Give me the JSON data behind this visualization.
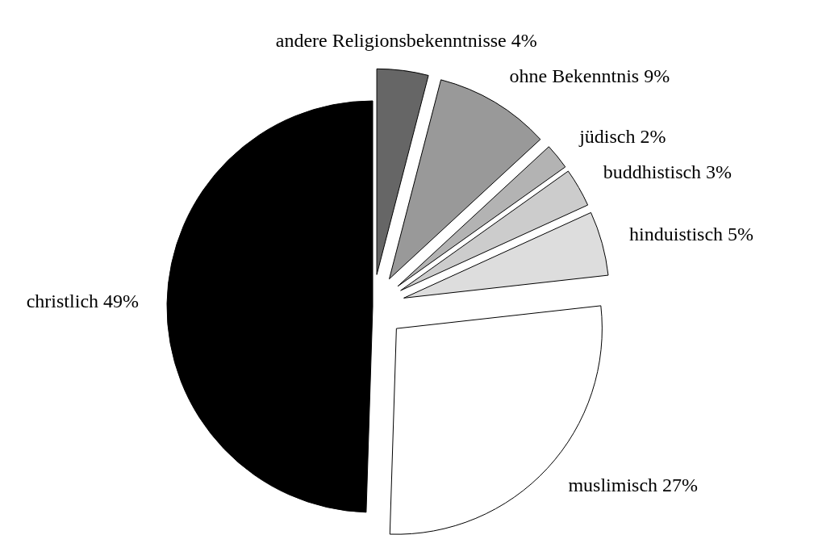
{
  "chart_data": {
    "type": "pie",
    "categories": [
      "andere Religionsbekenntnisse",
      "ohne Bekenntnis",
      "jüdisch",
      "buddhistisch",
      "hinduistisch",
      "muslimisch",
      "christlich"
    ],
    "values": [
      4,
      9,
      2,
      3,
      5,
      27,
      49
    ],
    "value_labels": [
      "4%",
      "9%",
      "2%",
      "3%",
      "5%",
      "27%",
      "49%"
    ],
    "colors": [
      "#666666",
      "#999999",
      "#b3b3b3",
      "#cccccc",
      "#dddddd",
      "#ffffff",
      "#000000"
    ]
  }
}
